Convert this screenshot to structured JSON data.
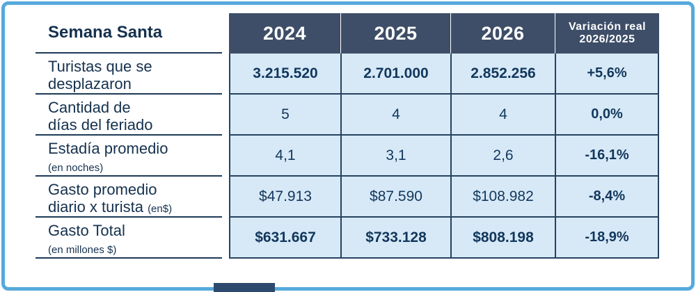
{
  "table": {
    "corner_label": "Semana Santa",
    "columns": [
      "2024",
      "2025",
      "2026"
    ],
    "variation_header": [
      "Variación real",
      "2026/2025"
    ],
    "rows": [
      {
        "l1": "Turistas que se",
        "l2": "desplazaron",
        "small": "",
        "values": [
          "3.215.520",
          "2.701.000",
          "2.852.256"
        ],
        "variation": "+5,6%"
      },
      {
        "l1": "Cantidad de",
        "l2": "días del feriado",
        "small": "",
        "values": [
          "5",
          "4",
          "4"
        ],
        "variation": "0,0%"
      },
      {
        "l1": "Estadía promedio",
        "l2": "",
        "small": "(en noches)",
        "values": [
          "4,1",
          "3,1",
          "2,6"
        ],
        "variation": "-16,1%"
      },
      {
        "l1": "Gasto promedio",
        "l2": "diario x turista ",
        "small": "(en$)",
        "values": [
          "$47.913",
          "$87.590",
          "$108.982"
        ],
        "variation": "-8,4%"
      },
      {
        "l1": "Gasto Total",
        "l2": "",
        "small": "(en millones $)",
        "values": [
          "$631.667",
          "$733.128",
          "$808.198"
        ],
        "variation": "-18,9%"
      }
    ]
  },
  "chart_data": {
    "type": "table",
    "title": "Semana Santa",
    "columns": [
      "2024",
      "2025",
      "2026",
      "Variación real 2026/2025"
    ],
    "rows": [
      {
        "label": "Turistas que se desplazaron",
        "values": [
          "3.215.520",
          "2.701.000",
          "2.852.256",
          "+5,6%"
        ]
      },
      {
        "label": "Cantidad de días del feriado",
        "values": [
          "5",
          "4",
          "4",
          "0,0%"
        ]
      },
      {
        "label": "Estadía promedio (en noches)",
        "values": [
          "4,1",
          "3,1",
          "2,6",
          "-16,1%"
        ]
      },
      {
        "label": "Gasto promedio diario x turista (en$)",
        "values": [
          "$47.913",
          "$87.590",
          "$108.982",
          "-8,4%"
        ]
      },
      {
        "label": "Gasto Total (en millones $)",
        "values": [
          "$631.667",
          "$733.128",
          "$808.198",
          "-18,9%"
        ]
      }
    ]
  },
  "colors": {
    "frame_border": "#55a9dc",
    "header_bg": "#3e4e68",
    "cell_bg": "#d7e9f7",
    "grid_line": "#25425f",
    "text": "#12375c",
    "header_text": "#ffffff"
  }
}
